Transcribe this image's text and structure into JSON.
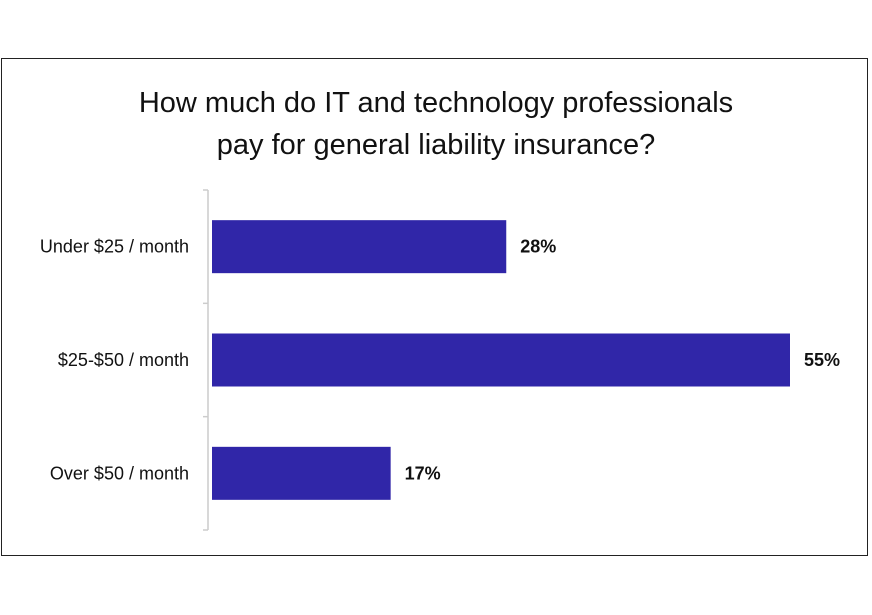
{
  "chart_data": {
    "type": "bar",
    "orientation": "horizontal",
    "title": "How much do IT and technology professionals pay for general liability insurance?",
    "title_lines": [
      "How much do IT and technology professionals",
      "pay for general liability insurance?"
    ],
    "categories": [
      "Under $25 / month",
      "$25-$50 / month",
      "Over $50 / month"
    ],
    "values": [
      28,
      55,
      17
    ],
    "value_labels": [
      "28%",
      "55%",
      "17%"
    ],
    "unit": "%",
    "xlim": [
      0,
      55
    ],
    "xlabel": "",
    "ylabel": "",
    "grid": false,
    "bar_color": "#3026a8"
  }
}
